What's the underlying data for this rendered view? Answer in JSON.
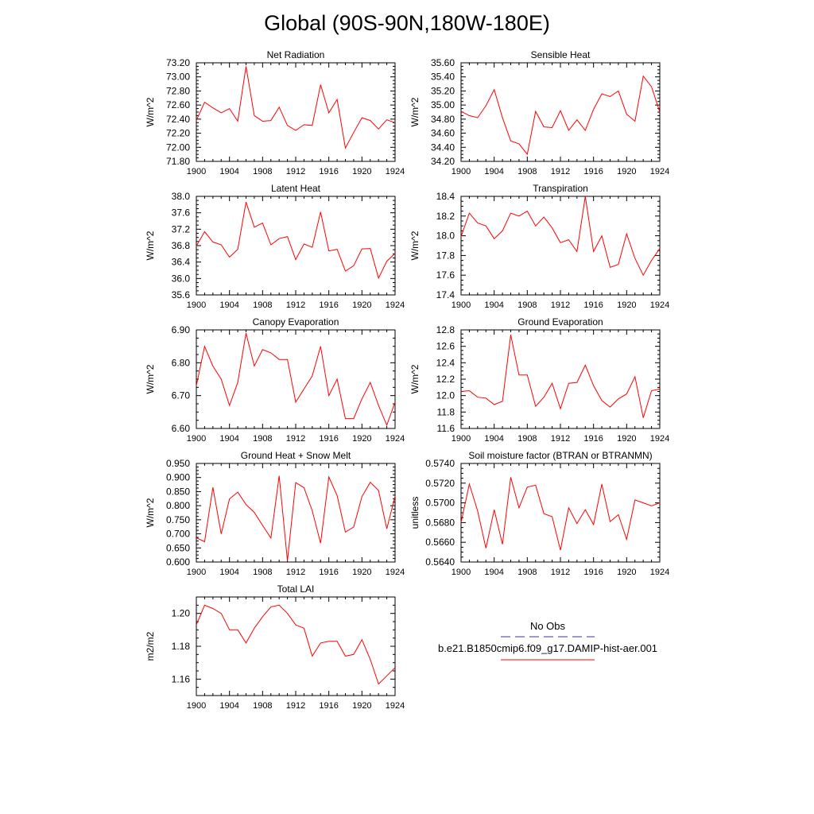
{
  "page": {
    "title": "Global (90S-90N,180W-180E)"
  },
  "legend": {
    "obs_label": "No Obs",
    "obs_color": "#3333aa",
    "model_label": "b.e21.B1850cmip6.f09_g17.DAMIP-hist-aer.001",
    "model_color": "#ff0000"
  },
  "chart_data": [
    {
      "type": "line",
      "title": "Net Radiation",
      "ylabel": "W/m^2",
      "ylim": [
        71.8,
        73.2
      ],
      "yticks": [
        71.8,
        72.0,
        72.2,
        72.4,
        72.6,
        72.8,
        73.0,
        73.2
      ],
      "ydecimals": 2,
      "xlim": [
        1900,
        1924
      ],
      "xticks": [
        1900,
        1904,
        1908,
        1912,
        1916,
        1920,
        1924
      ],
      "series": [
        {
          "color": "#ff0000",
          "x": [
            1900,
            1901,
            1902,
            1903,
            1904,
            1905,
            1906,
            1907,
            1908,
            1909,
            1910,
            1911,
            1912,
            1913,
            1914,
            1915,
            1916,
            1917,
            1918,
            1919,
            1920,
            1921,
            1922,
            1923,
            1924
          ],
          "values": [
            72.38,
            72.64,
            72.56,
            72.49,
            72.55,
            72.37,
            73.15,
            72.45,
            72.37,
            72.38,
            72.57,
            72.31,
            72.24,
            72.32,
            72.31,
            72.89,
            72.49,
            72.68,
            71.99,
            72.21,
            72.42,
            72.38,
            72.26,
            72.39,
            72.35
          ]
        }
      ]
    },
    {
      "type": "line",
      "title": "Sensible Heat",
      "ylabel": "W/m^2",
      "ylim": [
        34.2,
        35.6
      ],
      "yticks": [
        34.2,
        34.4,
        34.6,
        34.8,
        35.0,
        35.2,
        35.4,
        35.6
      ],
      "ydecimals": 2,
      "xlim": [
        1900,
        1924
      ],
      "xticks": [
        1900,
        1904,
        1908,
        1912,
        1916,
        1920,
        1924
      ],
      "series": [
        {
          "color": "#ff0000",
          "x": [
            1900,
            1901,
            1902,
            1903,
            1904,
            1905,
            1906,
            1907,
            1908,
            1909,
            1910,
            1911,
            1912,
            1913,
            1914,
            1915,
            1916,
            1917,
            1918,
            1919,
            1920,
            1921,
            1922,
            1923,
            1924
          ],
          "values": [
            34.91,
            34.85,
            34.82,
            34.99,
            35.22,
            34.82,
            34.49,
            34.45,
            34.3,
            34.91,
            34.69,
            34.68,
            34.92,
            34.64,
            34.79,
            34.64,
            34.94,
            35.16,
            35.12,
            35.2,
            34.87,
            34.77,
            35.41,
            35.26,
            34.9
          ]
        }
      ]
    },
    {
      "type": "line",
      "title": "Latent Heat",
      "ylabel": "W/m^2",
      "ylim": [
        35.6,
        38.0
      ],
      "yticks": [
        35.6,
        36.0,
        36.4,
        36.8,
        37.2,
        37.6,
        38.0
      ],
      "ydecimals": 1,
      "xlim": [
        1900,
        1924
      ],
      "xticks": [
        1900,
        1904,
        1908,
        1912,
        1916,
        1920,
        1924
      ],
      "series": [
        {
          "color": "#ff0000",
          "x": [
            1900,
            1901,
            1902,
            1903,
            1904,
            1905,
            1906,
            1907,
            1908,
            1909,
            1910,
            1911,
            1912,
            1913,
            1914,
            1915,
            1916,
            1917,
            1918,
            1919,
            1920,
            1921,
            1922,
            1923,
            1924
          ],
          "values": [
            36.79,
            37.14,
            36.89,
            36.82,
            36.52,
            36.71,
            37.86,
            37.25,
            37.35,
            36.82,
            36.97,
            37.02,
            36.46,
            36.84,
            36.76,
            37.62,
            36.67,
            36.71,
            36.18,
            36.31,
            36.72,
            36.73,
            36.01,
            36.42,
            36.61
          ]
        }
      ]
    },
    {
      "type": "line",
      "title": "Transpiration",
      "ylabel": "W/m^2",
      "ylim": [
        17.4,
        18.4
      ],
      "yticks": [
        17.4,
        17.6,
        17.8,
        18.0,
        18.2,
        18.4
      ],
      "ydecimals": 1,
      "xlim": [
        1900,
        1924
      ],
      "xticks": [
        1900,
        1904,
        1908,
        1912,
        1916,
        1920,
        1924
      ],
      "series": [
        {
          "color": "#ff0000",
          "x": [
            1900,
            1901,
            1902,
            1903,
            1904,
            1905,
            1906,
            1907,
            1908,
            1909,
            1910,
            1911,
            1912,
            1913,
            1914,
            1915,
            1916,
            1917,
            1918,
            1919,
            1920,
            1921,
            1922,
            1923,
            1924
          ],
          "values": [
            17.99,
            18.23,
            18.13,
            18.1,
            17.97,
            18.05,
            18.23,
            18.2,
            18.25,
            18.1,
            18.19,
            18.08,
            17.93,
            17.96,
            17.84,
            18.4,
            17.84,
            18.0,
            17.68,
            17.71,
            18.02,
            17.77,
            17.6,
            17.75,
            17.87
          ]
        }
      ]
    },
    {
      "type": "line",
      "title": "Canopy Evaporation",
      "ylabel": "W/m^2",
      "ylim": [
        6.6,
        6.9
      ],
      "yticks": [
        6.6,
        6.7,
        6.8,
        6.9
      ],
      "ydecimals": 2,
      "xlim": [
        1900,
        1924
      ],
      "xticks": [
        1900,
        1904,
        1908,
        1912,
        1916,
        1920,
        1924
      ],
      "series": [
        {
          "color": "#ff0000",
          "x": [
            1900,
            1901,
            1902,
            1903,
            1904,
            1905,
            1906,
            1907,
            1908,
            1909,
            1910,
            1911,
            1912,
            1913,
            1914,
            1915,
            1916,
            1917,
            1918,
            1919,
            1920,
            1921,
            1922,
            1923,
            1924
          ],
          "values": [
            6.73,
            6.85,
            6.79,
            6.75,
            6.67,
            6.74,
            6.89,
            6.79,
            6.84,
            6.83,
            6.81,
            6.81,
            6.68,
            6.72,
            6.76,
            6.85,
            6.7,
            6.75,
            6.63,
            6.63,
            6.69,
            6.74,
            6.67,
            6.61,
            6.68
          ]
        }
      ]
    },
    {
      "type": "line",
      "title": "Ground Evaporation",
      "ylabel": "W/m^2",
      "ylim": [
        11.6,
        12.8
      ],
      "yticks": [
        11.6,
        11.8,
        12.0,
        12.2,
        12.4,
        12.6,
        12.8
      ],
      "ydecimals": 1,
      "xlim": [
        1900,
        1924
      ],
      "xticks": [
        1900,
        1904,
        1908,
        1912,
        1916,
        1920,
        1924
      ],
      "series": [
        {
          "color": "#ff0000",
          "x": [
            1900,
            1901,
            1902,
            1903,
            1904,
            1905,
            1906,
            1907,
            1908,
            1909,
            1910,
            1911,
            1912,
            1913,
            1914,
            1915,
            1916,
            1917,
            1918,
            1919,
            1920,
            1921,
            1922,
            1923,
            1924
          ],
          "values": [
            12.05,
            12.06,
            11.98,
            11.97,
            11.89,
            11.93,
            12.74,
            12.25,
            12.25,
            11.87,
            11.98,
            12.15,
            11.84,
            12.15,
            12.16,
            12.37,
            12.12,
            11.94,
            11.86,
            11.96,
            12.02,
            12.23,
            11.73,
            12.06,
            12.08
          ]
        }
      ]
    },
    {
      "type": "line",
      "title": "Ground Heat + Snow Melt",
      "ylabel": "W/m^2",
      "ylim": [
        0.6,
        0.95
      ],
      "yticks": [
        0.6,
        0.65,
        0.7,
        0.75,
        0.8,
        0.85,
        0.9,
        0.95
      ],
      "ydecimals": 3,
      "xlim": [
        1900,
        1924
      ],
      "xticks": [
        1900,
        1904,
        1908,
        1912,
        1916,
        1920,
        1924
      ],
      "series": [
        {
          "color": "#ff0000",
          "x": [
            1900,
            1901,
            1902,
            1903,
            1904,
            1905,
            1906,
            1907,
            1908,
            1909,
            1910,
            1911,
            1912,
            1913,
            1914,
            1915,
            1916,
            1917,
            1918,
            1919,
            1920,
            1921,
            1922,
            1923,
            1924
          ],
          "values": [
            0.686,
            0.672,
            0.865,
            0.7,
            0.824,
            0.848,
            0.804,
            0.776,
            0.73,
            0.685,
            0.906,
            0.604,
            0.882,
            0.864,
            0.782,
            0.667,
            0.902,
            0.836,
            0.706,
            0.724,
            0.832,
            0.883,
            0.854,
            0.718,
            0.834
          ]
        }
      ]
    },
    {
      "type": "line",
      "title": "Soil moisture factor (BTRAN or BTRANMN)",
      "ylabel": "unitless",
      "ylim": [
        0.564,
        0.574
      ],
      "yticks": [
        0.564,
        0.566,
        0.568,
        0.57,
        0.572,
        0.574
      ],
      "ydecimals": 4,
      "xlim": [
        1900,
        1924
      ],
      "xticks": [
        1900,
        1904,
        1908,
        1912,
        1916,
        1920,
        1924
      ],
      "series": [
        {
          "color": "#ff0000",
          "x": [
            1900,
            1901,
            1902,
            1903,
            1904,
            1905,
            1906,
            1907,
            1908,
            1909,
            1910,
            1911,
            1912,
            1913,
            1914,
            1915,
            1916,
            1917,
            1918,
            1919,
            1920,
            1921,
            1922,
            1923,
            1924
          ],
          "values": [
            0.568,
            0.5719,
            0.5692,
            0.5654,
            0.5693,
            0.5658,
            0.5726,
            0.5695,
            0.5716,
            0.5718,
            0.5689,
            0.5686,
            0.5652,
            0.5695,
            0.5679,
            0.5693,
            0.5678,
            0.5719,
            0.5681,
            0.5688,
            0.5663,
            0.5703,
            0.57,
            0.5697,
            0.57
          ]
        }
      ]
    },
    {
      "type": "line",
      "title": "Total LAI",
      "ylabel": "m2/m2",
      "ylim": [
        1.15,
        1.21
      ],
      "yticks": [
        1.16,
        1.18,
        1.2
      ],
      "ydecimals": 2,
      "xlim": [
        1900,
        1924
      ],
      "xticks": [
        1900,
        1904,
        1908,
        1912,
        1916,
        1920,
        1924
      ],
      "series": [
        {
          "color": "#ff0000",
          "x": [
            1900,
            1901,
            1902,
            1903,
            1904,
            1905,
            1906,
            1907,
            1908,
            1909,
            1910,
            1911,
            1912,
            1913,
            1914,
            1915,
            1916,
            1917,
            1918,
            1919,
            1920,
            1921,
            1922,
            1923,
            1924
          ],
          "values": [
            1.193,
            1.205,
            1.203,
            1.2,
            1.19,
            1.19,
            1.182,
            1.191,
            1.198,
            1.204,
            1.205,
            1.2,
            1.193,
            1.191,
            1.174,
            1.182,
            1.183,
            1.183,
            1.174,
            1.175,
            1.184,
            1.172,
            1.157,
            1.162,
            1.167
          ]
        }
      ]
    }
  ]
}
